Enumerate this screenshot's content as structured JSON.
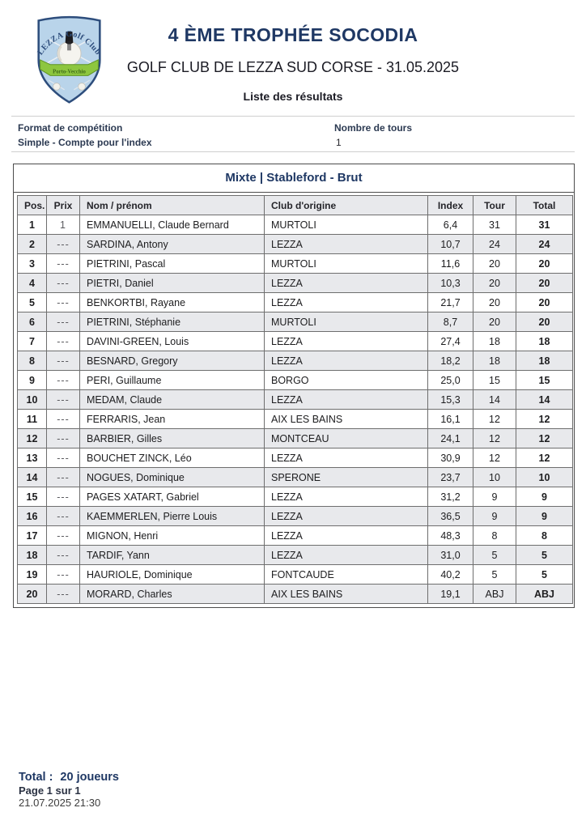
{
  "header": {
    "title": "4 ÈME TROPHÉE SOCODIA",
    "subtitle": "GOLF CLUB DE LEZZA SUD CORSE - 31.05.2025",
    "list_title": "Liste des résultats",
    "logo": {
      "arc_text": "LEZZA Golf Club",
      "banner_text": "Porto-Vecchio"
    }
  },
  "meta": {
    "format_label": "Format de compétition",
    "format_value": "Simple - Compte pour l'index",
    "rounds_label": "Nombre de tours",
    "rounds_value": "1"
  },
  "results": {
    "section_title": "Mixte | Stableford - Brut",
    "columns": [
      "Pos.",
      "Prix",
      "Nom / prénom",
      "Club d'origine",
      "Index",
      "Tour",
      "Total"
    ],
    "rows": [
      {
        "pos": "1",
        "prix": "1",
        "name": "EMMANUELLI, Claude Bernard",
        "club": "MURTOLI",
        "index": "6,4",
        "tour": "31",
        "total": "31"
      },
      {
        "pos": "2",
        "prix": "---",
        "name": "SARDINA, Antony",
        "club": "LEZZA",
        "index": "10,7",
        "tour": "24",
        "total": "24"
      },
      {
        "pos": "3",
        "prix": "---",
        "name": "PIETRINI, Pascal",
        "club": "MURTOLI",
        "index": "11,6",
        "tour": "20",
        "total": "20"
      },
      {
        "pos": "4",
        "prix": "---",
        "name": "PIETRI, Daniel",
        "club": "LEZZA",
        "index": "10,3",
        "tour": "20",
        "total": "20"
      },
      {
        "pos": "5",
        "prix": "---",
        "name": "BENKORTBI, Rayane",
        "club": "LEZZA",
        "index": "21,7",
        "tour": "20",
        "total": "20"
      },
      {
        "pos": "6",
        "prix": "---",
        "name": "PIETRINI, Stéphanie",
        "club": "MURTOLI",
        "index": "8,7",
        "tour": "20",
        "total": "20"
      },
      {
        "pos": "7",
        "prix": "---",
        "name": "DAVINI-GREEN, Louis",
        "club": "LEZZA",
        "index": "27,4",
        "tour": "18",
        "total": "18"
      },
      {
        "pos": "8",
        "prix": "---",
        "name": "BESNARD, Gregory",
        "club": "LEZZA",
        "index": "18,2",
        "tour": "18",
        "total": "18"
      },
      {
        "pos": "9",
        "prix": "---",
        "name": "PERI, Guillaume",
        "club": "BORGO",
        "index": "25,0",
        "tour": "15",
        "total": "15"
      },
      {
        "pos": "10",
        "prix": "---",
        "name": "MEDAM, Claude",
        "club": "LEZZA",
        "index": "15,3",
        "tour": "14",
        "total": "14"
      },
      {
        "pos": "11",
        "prix": "---",
        "name": "FERRARIS, Jean",
        "club": "AIX LES BAINS",
        "index": "16,1",
        "tour": "12",
        "total": "12"
      },
      {
        "pos": "12",
        "prix": "---",
        "name": "BARBIER, Gilles",
        "club": "MONTCEAU",
        "index": "24,1",
        "tour": "12",
        "total": "12"
      },
      {
        "pos": "13",
        "prix": "---",
        "name": "BOUCHET ZINCK, Léo",
        "club": "LEZZA",
        "index": "30,9",
        "tour": "12",
        "total": "12"
      },
      {
        "pos": "14",
        "prix": "---",
        "name": "NOGUES, Dominique",
        "club": "SPERONE",
        "index": "23,7",
        "tour": "10",
        "total": "10"
      },
      {
        "pos": "15",
        "prix": "---",
        "name": "PAGES XATART, Gabriel",
        "club": "LEZZA",
        "index": "31,2",
        "tour": "9",
        "total": "9"
      },
      {
        "pos": "16",
        "prix": "---",
        "name": "KAEMMERLEN, Pierre Louis",
        "club": "LEZZA",
        "index": "36,5",
        "tour": "9",
        "total": "9"
      },
      {
        "pos": "17",
        "prix": "---",
        "name": "MIGNON, Henri",
        "club": "LEZZA",
        "index": "48,3",
        "tour": "8",
        "total": "8"
      },
      {
        "pos": "18",
        "prix": "---",
        "name": "TARDIF, Yann",
        "club": "LEZZA",
        "index": "31,0",
        "tour": "5",
        "total": "5"
      },
      {
        "pos": "19",
        "prix": "---",
        "name": "HAURIOLE, Dominique",
        "club": "FONTCAUDE",
        "index": "40,2",
        "tour": "5",
        "total": "5"
      },
      {
        "pos": "20",
        "prix": "---",
        "name": "MORARD, Charles",
        "club": "AIX LES BAINS",
        "index": "19,1",
        "tour": "ABJ",
        "total": "ABJ"
      }
    ]
  },
  "footer": {
    "total_label": "Total :",
    "total_value": "20 joueurs",
    "page": "Page 1 sur 1",
    "datetime": "21.07.2025 21:30"
  },
  "colors": {
    "accent_navy": "#1f3864",
    "text_dark": "#1b1b24",
    "row_alt": "#e8e9ec",
    "table_border": "#6e6e6e",
    "logo_shield": "#b9d4ea",
    "logo_banner_green": "#8dc63f"
  }
}
